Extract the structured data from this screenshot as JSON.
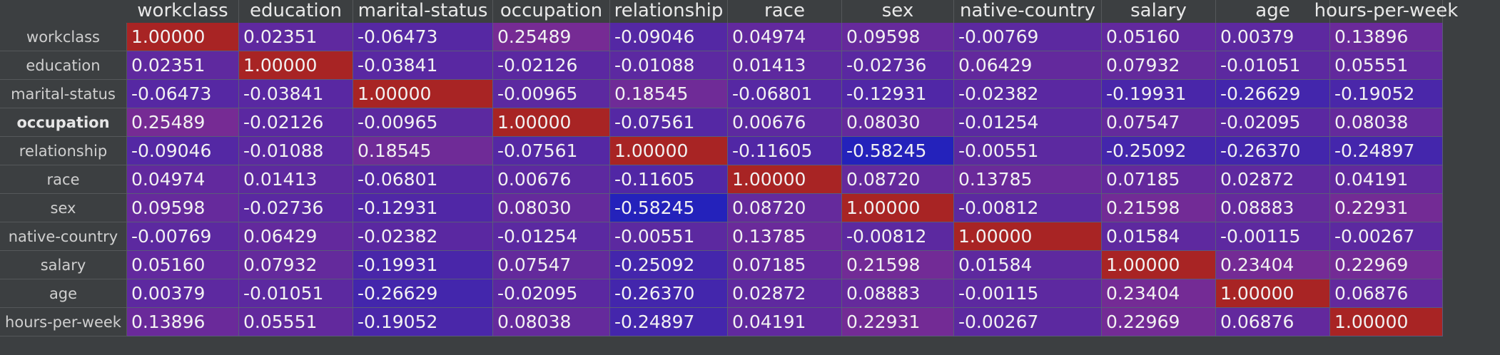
{
  "table": {
    "columns": [
      "workclass",
      "education",
      "marital-status",
      "occupation",
      "relationship",
      "race",
      "sex",
      "native-country",
      "salary",
      "age",
      "hours-per-week"
    ],
    "rows": [
      {
        "label": "workclass",
        "values": [
          "1.00000",
          "0.02351",
          "-0.06473",
          "0.25489",
          "-0.09046",
          "0.04974",
          "0.09598",
          "-0.00769",
          "0.05160",
          "0.00379",
          "0.13896"
        ]
      },
      {
        "label": "education",
        "values": [
          "0.02351",
          "1.00000",
          "-0.03841",
          "-0.02126",
          "-0.01088",
          "0.01413",
          "-0.02736",
          "0.06429",
          "0.07932",
          "-0.01051",
          "0.05551"
        ]
      },
      {
        "label": "marital-status",
        "values": [
          "-0.06473",
          "-0.03841",
          "1.00000",
          "-0.00965",
          "0.18545",
          "-0.06801",
          "-0.12931",
          "-0.02382",
          "-0.19931",
          "-0.26629",
          "-0.19052"
        ]
      },
      {
        "label": "occupation",
        "bold": true,
        "values": [
          "0.25489",
          "-0.02126",
          "-0.00965",
          "1.00000",
          "-0.07561",
          "0.00676",
          "0.08030",
          "-0.01254",
          "0.07547",
          "-0.02095",
          "0.08038"
        ]
      },
      {
        "label": "relationship",
        "values": [
          "-0.09046",
          "-0.01088",
          "0.18545",
          "-0.07561",
          "1.00000",
          "-0.11605",
          "-0.58245",
          "-0.00551",
          "-0.25092",
          "-0.26370",
          "-0.24897"
        ]
      },
      {
        "label": "race",
        "values": [
          "0.04974",
          "0.01413",
          "-0.06801",
          "0.00676",
          "-0.11605",
          "1.00000",
          "0.08720",
          "0.13785",
          "0.07185",
          "0.02872",
          "0.04191"
        ]
      },
      {
        "label": "sex",
        "values": [
          "0.09598",
          "-0.02736",
          "-0.12931",
          "0.08030",
          "-0.58245",
          "0.08720",
          "1.00000",
          "-0.00812",
          "0.21598",
          "0.08883",
          "0.22931"
        ]
      },
      {
        "label": "native-country",
        "values": [
          "-0.00769",
          "0.06429",
          "-0.02382",
          "-0.01254",
          "-0.00551",
          "0.13785",
          "-0.00812",
          "1.00000",
          "0.01584",
          "-0.00115",
          "-0.00267"
        ]
      },
      {
        "label": "salary",
        "values": [
          "0.05160",
          "0.07932",
          "-0.19931",
          "0.07547",
          "-0.25092",
          "0.07185",
          "0.21598",
          "0.01584",
          "1.00000",
          "0.23404",
          "0.22969"
        ]
      },
      {
        "label": "age",
        "values": [
          "0.00379",
          "-0.01051",
          "-0.26629",
          "-0.02095",
          "-0.26370",
          "0.02872",
          "0.08883",
          "-0.00115",
          "0.23404",
          "1.00000",
          "0.06876"
        ]
      },
      {
        "label": "hours-per-week",
        "values": [
          "0.13896",
          "0.05551",
          "-0.19052",
          "0.08038",
          "-0.24897",
          "0.04191",
          "0.22931",
          "-0.00267",
          "0.22969",
          "0.06876",
          "1.00000"
        ]
      }
    ]
  },
  "colors": {
    "background": "#3c3f41",
    "scale_low": "#1a1aba",
    "scale_high": "#b02020"
  }
}
